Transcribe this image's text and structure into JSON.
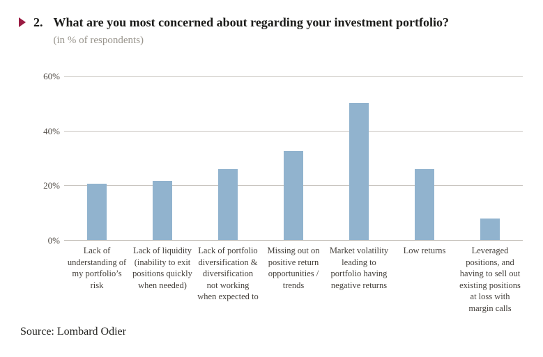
{
  "header": {
    "marker_color": "#9A1B42",
    "number": "2.",
    "title": "What are you most concerned about regarding your investment portfolio?",
    "subtitle": "(in % of respondents)"
  },
  "chart_data": {
    "type": "bar",
    "title": "What are you most concerned about regarding your investment portfolio?",
    "subtitle": "(in % of respondents)",
    "xlabel": "",
    "ylabel": "% of respondents",
    "ylim": [
      0,
      60
    ],
    "yticks": [
      0,
      20,
      40,
      60
    ],
    "ytick_labels": [
      "0%",
      "20%",
      "40%",
      "60%"
    ],
    "grid": true,
    "legend": false,
    "bar_color": "#91B3CE",
    "categories": [
      "Lack of understanding of my portfolio’s risk",
      "Lack of liquidity (inability to exit positions quickly when needed)",
      "Lack of portfolio diversification & diversification not working when expected to",
      "Missing out on positive return opportunities / trends",
      "Market volatility leading to portfolio having negative returns",
      "Low returns",
      "Leveraged positions, and having to sell out existing positions at loss with margin calls"
    ],
    "category_lines": [
      [
        "Lack of",
        "understanding of",
        "my portfolio’s",
        "risk"
      ],
      [
        "Lack of liquidity",
        "(inability to exit",
        "positions quickly",
        "when needed)"
      ],
      [
        "Lack of portfolio",
        "diversification &",
        "diversification",
        "not working",
        "when expected to"
      ],
      [
        "Missing out on",
        "positive return",
        "opportunities /",
        "trends"
      ],
      [
        "Market volatility",
        "leading to",
        "portfolio having",
        "negative returns"
      ],
      [
        "Low returns"
      ],
      [
        "Leveraged",
        "positions, and",
        "having to sell out",
        "existing positions",
        "at loss with",
        "margin calls"
      ]
    ],
    "values": [
      20.5,
      21.5,
      26,
      32.5,
      50,
      26,
      8
    ]
  },
  "footer": {
    "source": "Source: Lombard Odier"
  }
}
